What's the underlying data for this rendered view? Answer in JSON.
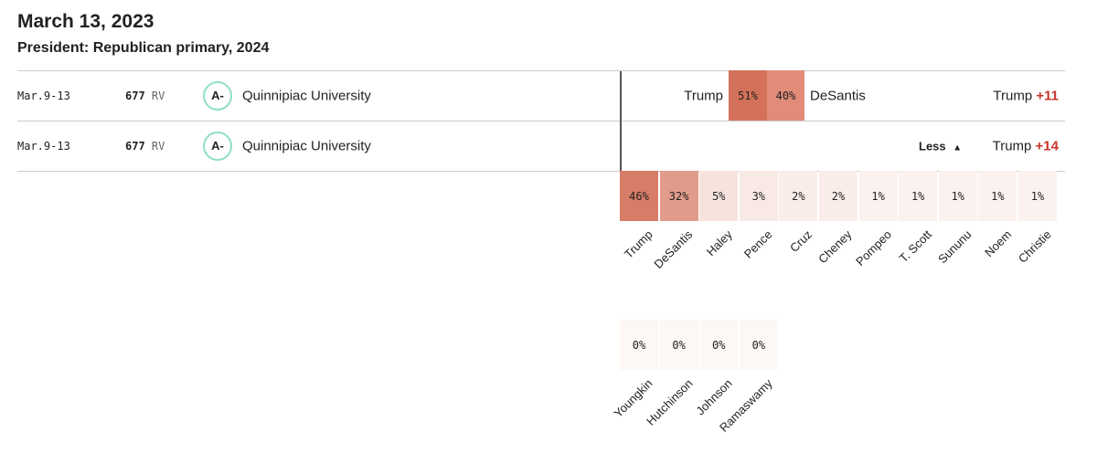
{
  "date": "March 13, 2023",
  "subtitle": "President: Republican primary, 2024",
  "polls": [
    {
      "dates": "Mar.9-13",
      "sample": "677",
      "pop": "RV",
      "grade": "A-",
      "pollster": "Quinnipiac University",
      "h2h": {
        "left": "Trump",
        "left_pct": "51%",
        "right_pct": "40%",
        "right": "DeSantis"
      },
      "net_leader": "Trump",
      "net": "+11"
    },
    {
      "dates": "Mar.9-13",
      "sample": "677",
      "pop": "RV",
      "grade": "A-",
      "pollster": "Quinnipiac University",
      "toggle": "Less",
      "net_leader": "Trump",
      "net": "+14"
    }
  ],
  "field": [
    {
      "name": "Trump",
      "pct": 46
    },
    {
      "name": "DeSantis",
      "pct": 32
    },
    {
      "name": "Haley",
      "pct": 5
    },
    {
      "name": "Pence",
      "pct": 3
    },
    {
      "name": "Cruz",
      "pct": 2
    },
    {
      "name": "Cheney",
      "pct": 2
    },
    {
      "name": "Pompeo",
      "pct": 1
    },
    {
      "name": "T. Scott",
      "pct": 1
    },
    {
      "name": "Sununu",
      "pct": 1
    },
    {
      "name": "Noem",
      "pct": 1
    },
    {
      "name": "Christie",
      "pct": 1
    },
    {
      "name": "Youngkin",
      "pct": 0
    },
    {
      "name": "Hutchinson",
      "pct": 0
    },
    {
      "name": "Johnson",
      "pct": 0
    },
    {
      "name": "Ramaswamy",
      "pct": 0
    }
  ],
  "colors": {
    "grade_ring": "#8fe0c4",
    "net": "#c8342a",
    "heat_max": "#d4715a",
    "heat_min": "#fdf7f5"
  }
}
